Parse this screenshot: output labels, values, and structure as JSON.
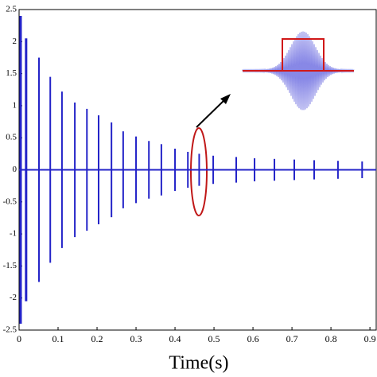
{
  "chart_data": {
    "type": "stem",
    "x_label": "Time(s)",
    "series": [
      {
        "color": "#2323c8",
        "x": [
          0.004,
          0.018,
          0.051,
          0.08,
          0.11,
          0.143,
          0.174,
          0.204,
          0.237,
          0.267,
          0.3,
          0.333,
          0.365,
          0.4,
          0.433,
          0.462,
          0.498,
          0.557,
          0.604,
          0.655,
          0.706,
          0.757,
          0.818,
          0.88
        ],
        "values": [
          2.4,
          2.05,
          1.75,
          1.45,
          1.22,
          1.05,
          0.95,
          0.85,
          0.74,
          0.6,
          0.52,
          0.45,
          0.4,
          0.33,
          0.28,
          0.25,
          0.22,
          0.2,
          0.18,
          0.17,
          0.16,
          0.15,
          0.14,
          0.13
        ]
      }
    ],
    "xlim": [
      0,
      0.91
    ],
    "ylim": [
      -2.5,
      2.5
    ],
    "xticks": [
      0,
      0.1,
      0.2,
      0.3,
      0.4,
      0.5,
      0.6,
      0.7,
      0.8,
      0.9
    ],
    "yticks": [
      -2.5,
      -2,
      -1.5,
      -1,
      -0.5,
      0,
      0.5,
      1,
      1.5,
      2,
      2.5
    ]
  }
}
